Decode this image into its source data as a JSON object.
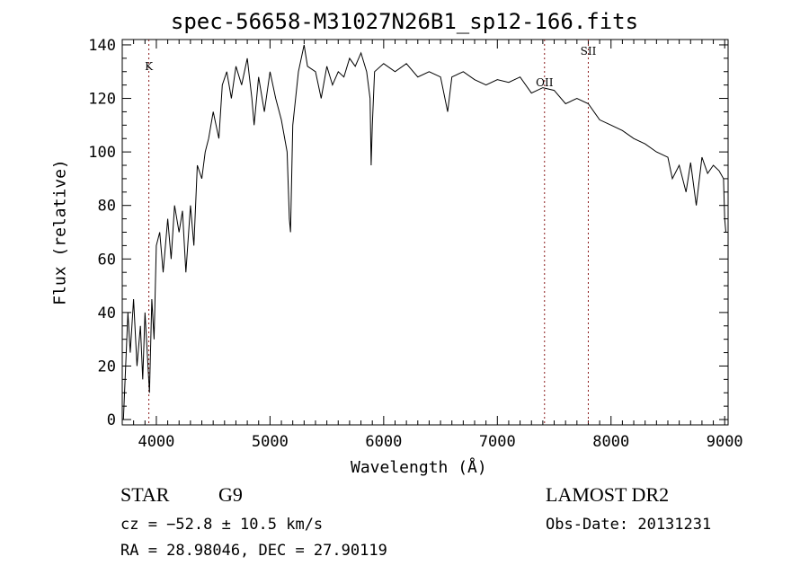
{
  "chart_data": {
    "type": "line",
    "title": "spec-56658-M31027N26B1_sp12-166.fits",
    "xlabel": "Wavelength (Å)",
    "ylabel": "Flux (relative)",
    "xlim": [
      3700,
      9030
    ],
    "ylim": [
      -2,
      142
    ],
    "xticks": [
      4000,
      5000,
      6000,
      7000,
      8000,
      9000
    ],
    "yticks": [
      0,
      20,
      40,
      60,
      80,
      100,
      120,
      140
    ],
    "grid": false,
    "lines": [
      {
        "label": "K",
        "x": 3934
      },
      {
        "label": "OII",
        "x": 7415
      },
      {
        "label": "SII",
        "x": 7800
      }
    ],
    "series": [
      {
        "name": "spectrum",
        "x": [
          3710,
          3730,
          3750,
          3770,
          3800,
          3830,
          3860,
          3880,
          3900,
          3920,
          3940,
          3960,
          3980,
          4000,
          4030,
          4060,
          4100,
          4130,
          4160,
          4200,
          4230,
          4260,
          4300,
          4330,
          4360,
          4400,
          4430,
          4460,
          4500,
          4550,
          4580,
          4620,
          4660,
          4700,
          4750,
          4800,
          4840,
          4860,
          4900,
          4950,
          5000,
          5050,
          5100,
          5150,
          5170,
          5180,
          5200,
          5250,
          5300,
          5330,
          5400,
          5450,
          5500,
          5550,
          5600,
          5650,
          5700,
          5750,
          5800,
          5850,
          5880,
          5890,
          5900,
          5920,
          6000,
          6100,
          6200,
          6300,
          6400,
          6500,
          6563,
          6600,
          6700,
          6800,
          6900,
          7000,
          7100,
          7200,
          7300,
          7400,
          7500,
          7600,
          7700,
          7800,
          7900,
          8000,
          8100,
          8200,
          8300,
          8400,
          8500,
          8540,
          8600,
          8660,
          8700,
          8750,
          8800,
          8850,
          8900,
          8950,
          8990,
          9000,
          9010
        ],
        "y": [
          0,
          20,
          40,
          25,
          45,
          20,
          35,
          15,
          40,
          25,
          10,
          45,
          30,
          65,
          70,
          55,
          75,
          60,
          80,
          70,
          78,
          55,
          80,
          65,
          95,
          90,
          100,
          105,
          115,
          105,
          125,
          130,
          120,
          132,
          125,
          135,
          120,
          110,
          128,
          115,
          130,
          120,
          112,
          100,
          75,
          70,
          110,
          130,
          140,
          132,
          130,
          120,
          132,
          125,
          130,
          128,
          135,
          132,
          137,
          130,
          120,
          95,
          110,
          130,
          133,
          130,
          133,
          128,
          130,
          128,
          115,
          128,
          130,
          127,
          125,
          127,
          126,
          128,
          122,
          124,
          123,
          118,
          120,
          118,
          112,
          110,
          108,
          105,
          103,
          100,
          98,
          90,
          95,
          85,
          96,
          80,
          98,
          92,
          95,
          93,
          90,
          75,
          70
        ]
      }
    ]
  },
  "footer": {
    "object_class": "STAR",
    "subclass": "G9",
    "survey": "LAMOST DR2",
    "redshift": "cz = −52.8 ± 10.5 km/s",
    "obs_date": "Obs-Date: 20131231",
    "coords": "RA =  28.98046, DEC =  27.90119"
  }
}
